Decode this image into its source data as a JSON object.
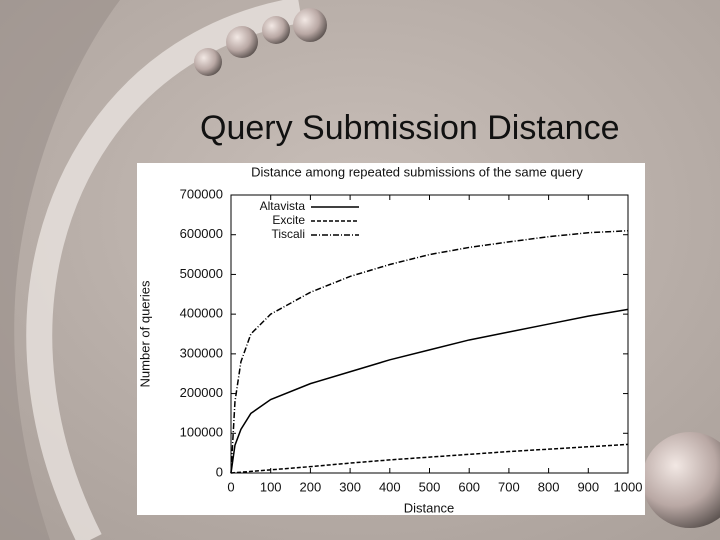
{
  "slide_title": "Query Submission Distance",
  "chart_data": {
    "type": "line",
    "title": "Distance among repeated submissions of the same query",
    "xlabel": "Distance",
    "ylabel": "Number of queries",
    "x": [
      0,
      10,
      25,
      50,
      100,
      200,
      300,
      400,
      500,
      600,
      700,
      800,
      900,
      1000
    ],
    "series": [
      {
        "name": "Altavista",
        "color": "#000000",
        "dash": "solid",
        "values": [
          0,
          70000,
          110000,
          150000,
          185000,
          225000,
          255000,
          285000,
          310000,
          335000,
          355000,
          375000,
          395000,
          412000
        ]
      },
      {
        "name": "Excite",
        "color": "#000000",
        "dash": "dashed",
        "values": [
          0,
          1000,
          2000,
          4000,
          8000,
          16000,
          25000,
          33000,
          40000,
          47000,
          54000,
          60000,
          66000,
          72000
        ]
      },
      {
        "name": "Tiscali",
        "color": "#000000",
        "dash": "dashdot",
        "values": [
          0,
          180000,
          280000,
          350000,
          400000,
          455000,
          495000,
          525000,
          550000,
          568000,
          582000,
          595000,
          605000,
          610000
        ]
      }
    ],
    "xlim": [
      0,
      1000
    ],
    "xticks": [
      0,
      100,
      200,
      300,
      400,
      500,
      600,
      700,
      800,
      900,
      1000
    ],
    "ylim": [
      0,
      700000
    ],
    "yticks": [
      0,
      100000,
      200000,
      300000,
      400000,
      500000,
      600000,
      700000
    ],
    "legend": "upper-left"
  }
}
